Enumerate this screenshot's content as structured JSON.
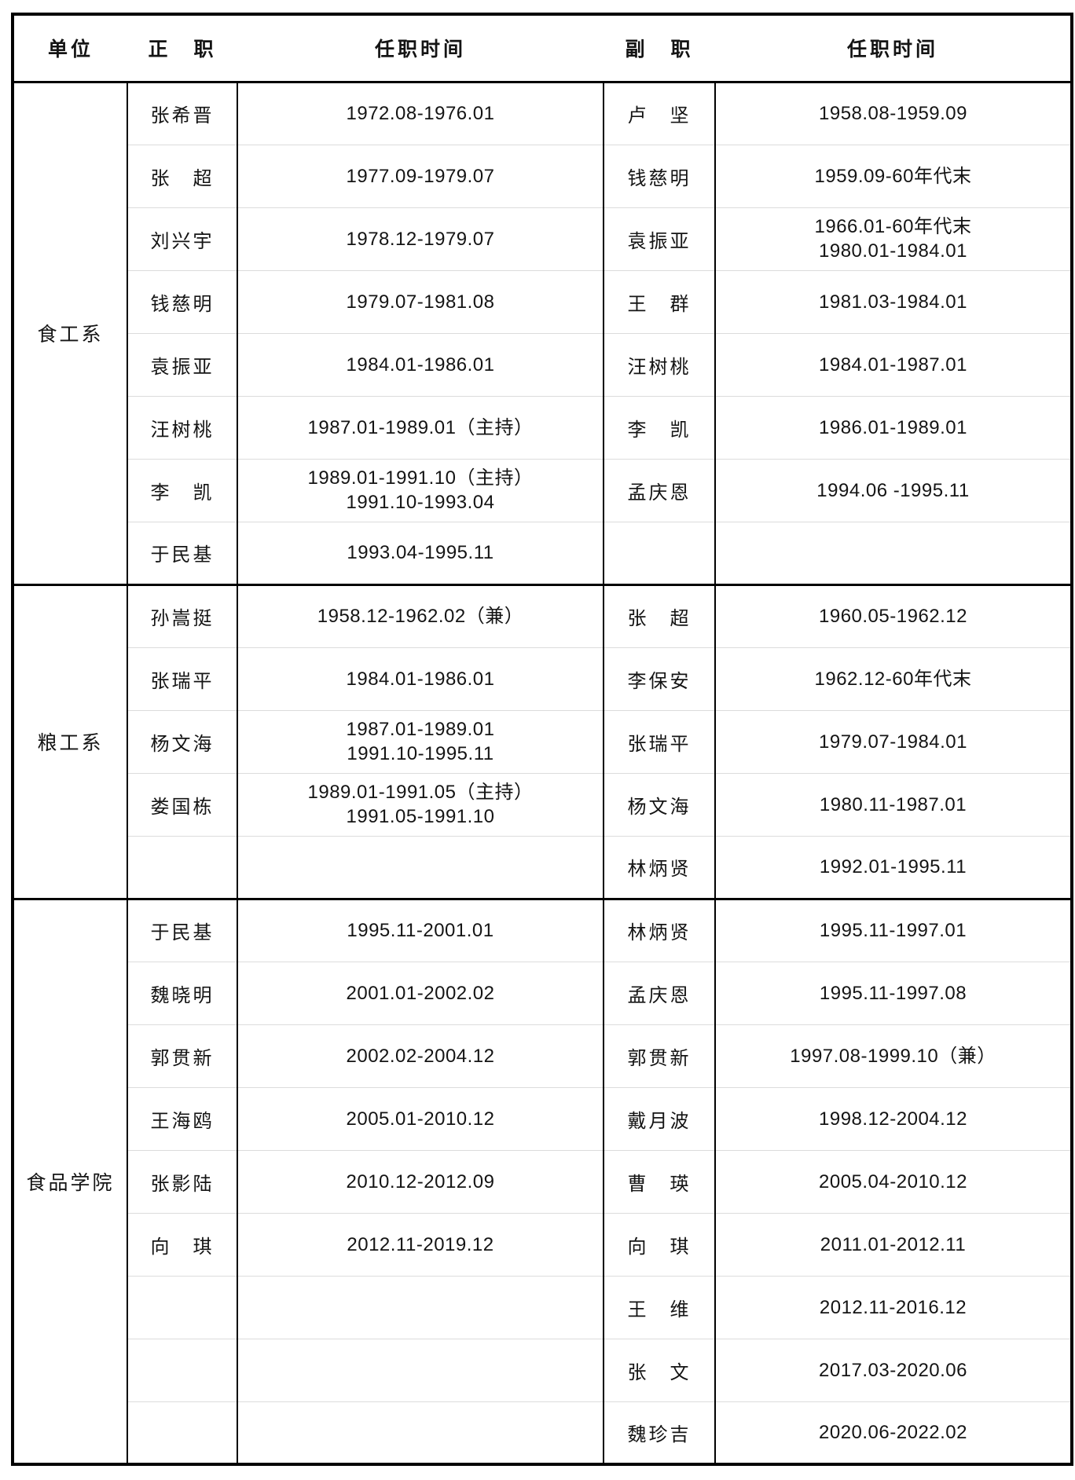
{
  "table": {
    "headers": {
      "unit": "单位",
      "principal": "正　职",
      "principal_tenure": "任职时间",
      "deputy": "副　职",
      "deputy_tenure": "任职时间"
    },
    "sections": [
      {
        "unit": "食工系",
        "rows": [
          {
            "principal": "张希晋",
            "p_tenure": [
              "1972.08-1976.01"
            ],
            "deputy": "卢　坚",
            "d_tenure": [
              "1958.08-1959.09"
            ]
          },
          {
            "principal": "张　超",
            "p_tenure": [
              "1977.09-1979.07"
            ],
            "deputy": "钱慈明",
            "d_tenure": [
              "1959.09-60年代末"
            ]
          },
          {
            "principal": "刘兴宇",
            "p_tenure": [
              "1978.12-1979.07"
            ],
            "deputy": "袁振亚",
            "d_tenure": [
              "1966.01-60年代末",
              "1980.01-1984.01"
            ]
          },
          {
            "principal": "钱慈明",
            "p_tenure": [
              "1979.07-1981.08"
            ],
            "deputy": "王　群",
            "d_tenure": [
              "1981.03-1984.01"
            ]
          },
          {
            "principal": "袁振亚",
            "p_tenure": [
              "1984.01-1986.01"
            ],
            "deputy": "汪树桃",
            "d_tenure": [
              "1984.01-1987.01"
            ]
          },
          {
            "principal": "汪树桃",
            "p_tenure": [
              "1987.01-1989.01（主持）"
            ],
            "deputy": "李　凯",
            "d_tenure": [
              "1986.01-1989.01"
            ]
          },
          {
            "principal": "李　凯",
            "p_tenure": [
              "1989.01-1991.10（主持）",
              "1991.10-1993.04"
            ],
            "deputy": "孟庆恩",
            "d_tenure": [
              "1994.06 -1995.11"
            ]
          },
          {
            "principal": "于民基",
            "p_tenure": [
              "1993.04-1995.11"
            ],
            "deputy": "",
            "d_tenure": []
          }
        ]
      },
      {
        "unit": "粮工系",
        "rows": [
          {
            "principal": "孙嵩挺",
            "p_tenure": [
              "1958.12-1962.02（兼）"
            ],
            "deputy": "张　超",
            "d_tenure": [
              "1960.05-1962.12"
            ]
          },
          {
            "principal": "张瑞平",
            "p_tenure": [
              "1984.01-1986.01"
            ],
            "deputy": "李保安",
            "d_tenure": [
              "1962.12-60年代末"
            ]
          },
          {
            "principal": "杨文海",
            "p_tenure": [
              "1987.01-1989.01",
              "1991.10-1995.11"
            ],
            "deputy": "张瑞平",
            "d_tenure": [
              "1979.07-1984.01"
            ]
          },
          {
            "principal": "娄国栋",
            "p_tenure": [
              "1989.01-1991.05（主持）",
              "1991.05-1991.10"
            ],
            "deputy": "杨文海",
            "d_tenure": [
              "1980.11-1987.01"
            ]
          },
          {
            "principal": "",
            "p_tenure": [],
            "deputy": "林炳贤",
            "d_tenure": [
              "1992.01-1995.11"
            ]
          }
        ]
      },
      {
        "unit": "食品学院",
        "rows": [
          {
            "principal": "于民基",
            "p_tenure": [
              "1995.11-2001.01"
            ],
            "deputy": "林炳贤",
            "d_tenure": [
              "1995.11-1997.01"
            ]
          },
          {
            "principal": "魏晓明",
            "p_tenure": [
              "2001.01-2002.02"
            ],
            "deputy": "孟庆恩",
            "d_tenure": [
              "1995.11-1997.08"
            ]
          },
          {
            "principal": "郭贯新",
            "p_tenure": [
              "2002.02-2004.12"
            ],
            "deputy": "郭贯新",
            "d_tenure": [
              "1997.08-1999.10（兼）"
            ]
          },
          {
            "principal": "王海鸥",
            "p_tenure": [
              "2005.01-2010.12"
            ],
            "deputy": "戴月波",
            "d_tenure": [
              "1998.12-2004.12"
            ]
          },
          {
            "principal": "张影陆",
            "p_tenure": [
              "2010.12-2012.09"
            ],
            "deputy": "曹　瑛",
            "d_tenure": [
              "2005.04-2010.12"
            ]
          },
          {
            "principal": "向　琪",
            "p_tenure": [
              "2012.11-2019.12"
            ],
            "deputy": "向　琪",
            "d_tenure": [
              "2011.01-2012.11"
            ]
          },
          {
            "principal": "",
            "p_tenure": [],
            "deputy": "王　维",
            "d_tenure": [
              "2012.11-2016.12"
            ]
          },
          {
            "principal": "",
            "p_tenure": [],
            "deputy": "张　文",
            "d_tenure": [
              "2017.03-2020.06"
            ]
          },
          {
            "principal": "",
            "p_tenure": [],
            "deputy": "魏珍吉",
            "d_tenure": [
              "2020.06-2022.02"
            ]
          }
        ]
      }
    ]
  }
}
